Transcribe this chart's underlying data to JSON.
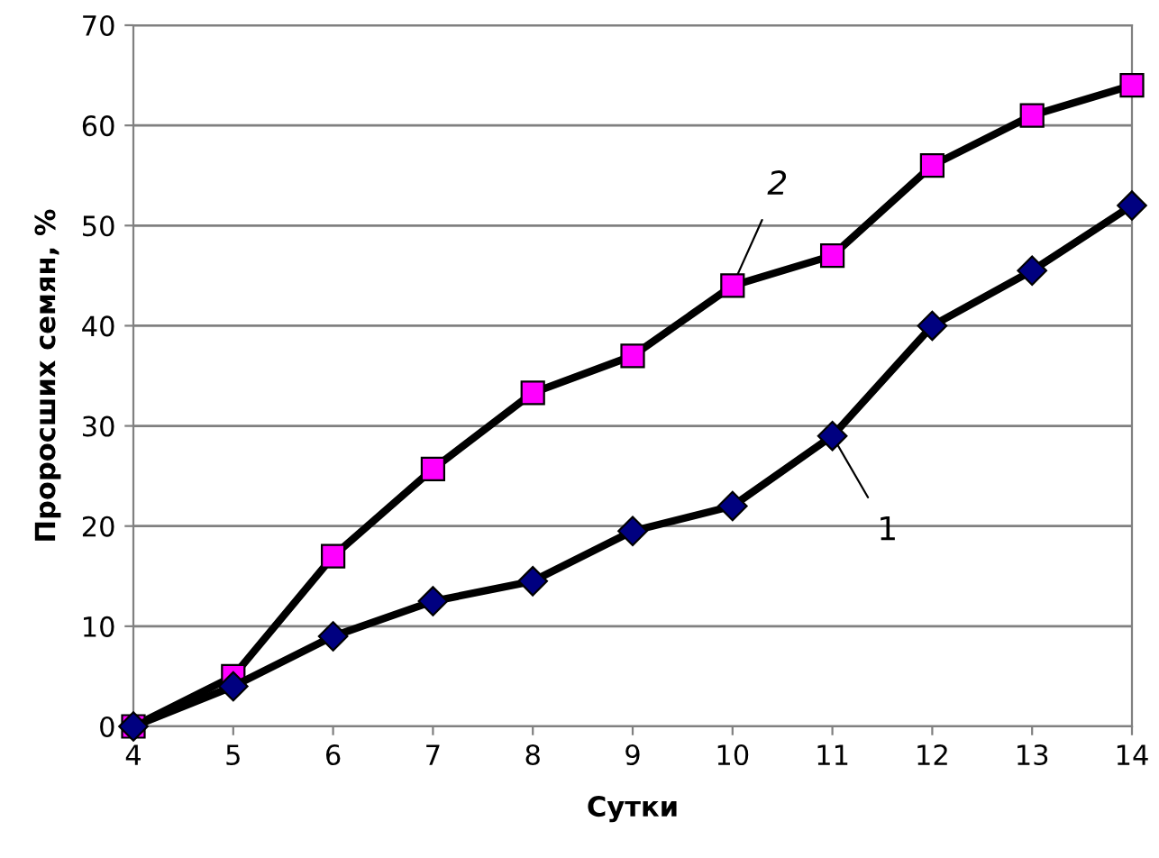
{
  "chart_data": {
    "type": "line",
    "xlabel": "Сутки",
    "ylabel": "Проросших семян, %",
    "x": [
      4,
      5,
      6,
      7,
      8,
      9,
      10,
      11,
      12,
      13,
      14
    ],
    "series": [
      {
        "color": "#000080",
        "marker": "diamond",
        "values": [
          0,
          4,
          9,
          12.5,
          14.5,
          19.5,
          22,
          29,
          40,
          45.5,
          52
        ]
      },
      {
        "color": "#ff00ff",
        "marker": "square",
        "values": [
          0,
          5,
          17,
          25.7,
          33.3,
          37,
          44,
          47,
          56,
          61,
          64
        ]
      }
    ],
    "annotations": [
      {
        "text": "1",
        "x": 11,
        "y": 29
      },
      {
        "text": "2",
        "x": 10,
        "y": 44
      }
    ],
    "xlim": [
      4,
      14
    ],
    "xticks": [
      4,
      5,
      6,
      7,
      8,
      9,
      10,
      11,
      12,
      13,
      14
    ],
    "ylim": [
      0,
      70
    ],
    "yticks": [
      0,
      10,
      20,
      30,
      40,
      50,
      60,
      70
    ],
    "grid": "y",
    "line_style": "solid"
  }
}
